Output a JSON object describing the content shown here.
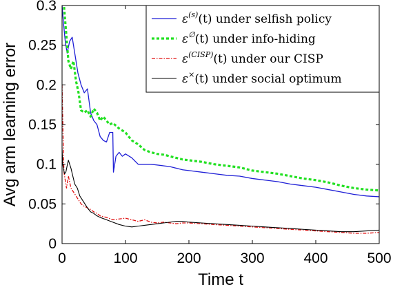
{
  "chart_data": {
    "type": "line",
    "xlabel": "Time t",
    "ylabel": "Avg arm learning error",
    "xlim": [
      0,
      500
    ],
    "ylim": [
      0,
      0.3
    ],
    "xticks": [
      0,
      100,
      200,
      300,
      400,
      500
    ],
    "xtick_labels": [
      "0",
      "100",
      "200",
      "300",
      "400",
      "500"
    ],
    "yticks": [
      0,
      0.05,
      0.1,
      0.15,
      0.2,
      0.25,
      0.3
    ],
    "ytick_labels": [
      "0",
      "0.05",
      "0.1",
      "0.15",
      "0.2",
      "0.25",
      "0.3"
    ],
    "grid": false,
    "legend_position": "top-right",
    "series": [
      {
        "key": "selfish",
        "legend_symbol": "ε",
        "legend_sup": "(s)",
        "legend_rest": "(t) under selfish policy",
        "color": "#1f1fd6",
        "dash": "",
        "width": 1.3,
        "x": [
          0,
          2,
          5,
          8,
          12,
          16,
          20,
          25,
          30,
          35,
          40,
          45,
          50,
          55,
          60,
          65,
          70,
          75,
          80,
          81,
          85,
          90,
          95,
          100,
          110,
          120,
          130,
          140,
          150,
          160,
          170,
          180,
          190,
          200,
          220,
          240,
          260,
          280,
          300,
          320,
          340,
          360,
          380,
          400,
          420,
          440,
          460,
          480,
          500
        ],
        "y": [
          0.3,
          0.28,
          0.255,
          0.24,
          0.255,
          0.26,
          0.24,
          0.215,
          0.2,
          0.19,
          0.195,
          0.165,
          0.155,
          0.15,
          0.135,
          0.13,
          0.128,
          0.14,
          0.14,
          0.09,
          0.11,
          0.115,
          0.11,
          0.113,
          0.108,
          0.1,
          0.1,
          0.1,
          0.099,
          0.098,
          0.097,
          0.095,
          0.093,
          0.092,
          0.09,
          0.088,
          0.086,
          0.085,
          0.082,
          0.08,
          0.078,
          0.075,
          0.073,
          0.071,
          0.068,
          0.065,
          0.062,
          0.06,
          0.059
        ]
      },
      {
        "key": "info_hiding",
        "legend_symbol": "ε",
        "legend_sup": "∅",
        "legend_rest": "(t) under info-hiding",
        "color": "#22e022",
        "dash": "4,3",
        "width": 3.2,
        "x": [
          0,
          3,
          6,
          10,
          14,
          18,
          22,
          26,
          30,
          35,
          40,
          45,
          50,
          55,
          60,
          65,
          70,
          75,
          80,
          90,
          100,
          110,
          120,
          130,
          140,
          150,
          160,
          170,
          180,
          190,
          200,
          220,
          240,
          260,
          280,
          300,
          320,
          340,
          360,
          380,
          400,
          420,
          440,
          460,
          480,
          500
        ],
        "y": [
          0.31,
          0.3,
          0.27,
          0.23,
          0.22,
          0.23,
          0.205,
          0.19,
          0.168,
          0.165,
          0.168,
          0.16,
          0.17,
          0.165,
          0.155,
          0.16,
          0.155,
          0.15,
          0.152,
          0.145,
          0.14,
          0.13,
          0.125,
          0.118,
          0.115,
          0.113,
          0.112,
          0.11,
          0.108,
          0.106,
          0.105,
          0.103,
          0.1,
          0.098,
          0.096,
          0.092,
          0.09,
          0.088,
          0.085,
          0.082,
          0.08,
          0.077,
          0.073,
          0.07,
          0.068,
          0.067
        ]
      },
      {
        "key": "cisp",
        "legend_symbol": "ε",
        "legend_sup": "(CISP)",
        "legend_rest": "(t) under our CISP",
        "color": "#e01010",
        "dash": "5,2,1.5,2",
        "width": 1.3,
        "x": [
          0,
          1,
          2,
          3,
          5,
          7,
          10,
          14,
          18,
          22,
          26,
          30,
          35,
          40,
          45,
          50,
          55,
          60,
          70,
          80,
          90,
          100,
          110,
          120,
          130,
          140,
          150,
          160,
          170,
          180,
          190,
          200,
          220,
          240,
          260,
          280,
          300,
          320,
          340,
          360,
          380,
          400,
          420,
          440,
          460,
          480,
          500
        ],
        "y": [
          0.2,
          0.16,
          0.12,
          0.09,
          0.08,
          0.07,
          0.085,
          0.07,
          0.065,
          0.06,
          0.055,
          0.05,
          0.047,
          0.045,
          0.043,
          0.04,
          0.038,
          0.035,
          0.033,
          0.03,
          0.031,
          0.032,
          0.03,
          0.028,
          0.03,
          0.027,
          0.026,
          0.027,
          0.026,
          0.025,
          0.026,
          0.026,
          0.025,
          0.024,
          0.023,
          0.022,
          0.021,
          0.02,
          0.019,
          0.018,
          0.017,
          0.016,
          0.015,
          0.014,
          0.013,
          0.013,
          0.014
        ]
      },
      {
        "key": "social_opt",
        "legend_symbol": "ε",
        "legend_sup": "×",
        "legend_rest": "(t) under social optimum",
        "color": "#000000",
        "dash": "",
        "width": 1.1,
        "x": [
          0,
          1,
          2,
          4,
          6,
          8,
          10,
          12,
          14,
          17,
          20,
          24,
          28,
          32,
          36,
          40,
          45,
          50,
          55,
          60,
          70,
          80,
          90,
          100,
          110,
          120,
          130,
          140,
          150,
          160,
          170,
          180,
          190,
          200,
          220,
          240,
          260,
          280,
          300,
          320,
          340,
          360,
          380,
          400,
          420,
          440,
          460,
          480,
          500
        ],
        "y": [
          0.12,
          0.1,
          0.095,
          0.088,
          0.09,
          0.098,
          0.105,
          0.1,
          0.095,
          0.085,
          0.075,
          0.07,
          0.06,
          0.055,
          0.05,
          0.045,
          0.04,
          0.038,
          0.035,
          0.033,
          0.03,
          0.027,
          0.024,
          0.022,
          0.021,
          0.022,
          0.023,
          0.024,
          0.025,
          0.026,
          0.027,
          0.028,
          0.028,
          0.027,
          0.026,
          0.025,
          0.024,
          0.023,
          0.022,
          0.021,
          0.02,
          0.019,
          0.018,
          0.017,
          0.016,
          0.015,
          0.015,
          0.016,
          0.017
        ]
      }
    ]
  }
}
